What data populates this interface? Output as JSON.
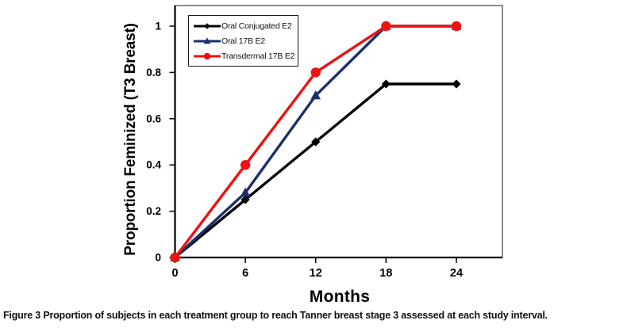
{
  "figure": {
    "caption_label": "Figure 3",
    "caption_text": "Proportion of subjects in each treatment group to reach Tanner breast stage 3 assessed at each study interval."
  },
  "chart_data": {
    "type": "line",
    "title": "",
    "xlabel": "Months",
    "ylabel": "Proportion Feminized (T3 Breast)",
    "x": [
      0,
      6,
      12,
      18,
      24
    ],
    "xtick_labels": [
      "0",
      "6",
      "12",
      "18",
      "24"
    ],
    "ytick_values": [
      0,
      0.2,
      0.4,
      0.6,
      0.8,
      1
    ],
    "ytick_labels": [
      "0",
      "0.2",
      "0.4",
      "0.6",
      "0.8",
      "1"
    ],
    "xlim": [
      0,
      28
    ],
    "ylim": [
      0,
      1.09
    ],
    "grid": false,
    "legend_position": "top-left-inside",
    "series": [
      {
        "name": "Oral Conjugated E2",
        "color": "#000000",
        "marker": "diamond",
        "values": [
          0,
          0.25,
          0.5,
          0.75,
          0.75
        ]
      },
      {
        "name": "Oral 17B E2",
        "color": "#1b3068",
        "marker": "triangle",
        "values": [
          0,
          0.28,
          0.7,
          1,
          1
        ]
      },
      {
        "name": "Transdermal 17B E2",
        "color": "#ee1111",
        "marker": "circle",
        "values": [
          0,
          0.4,
          0.8,
          1,
          1
        ]
      }
    ]
  }
}
